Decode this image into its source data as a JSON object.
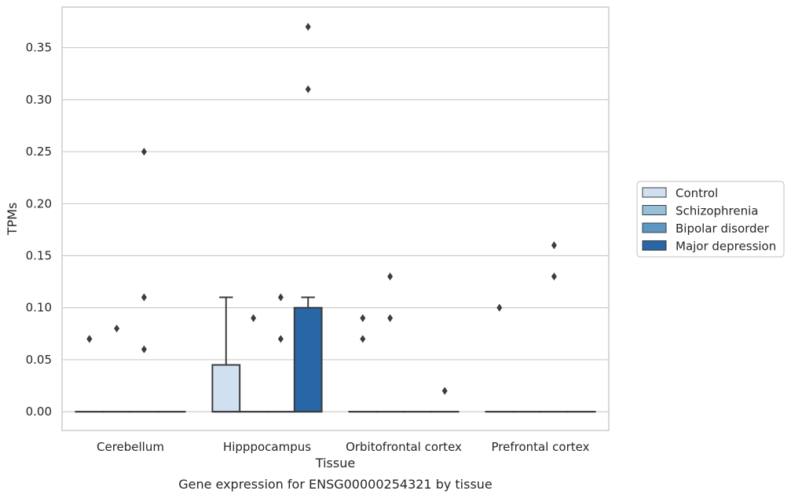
{
  "chart_data": {
    "type": "box",
    "title": "",
    "caption": "Gene expression for ENSG00000254321 by tissue",
    "xlabel": "Tissue",
    "ylabel": "TPMs",
    "ylim": [
      -0.018,
      0.389
    ],
    "yticks": [
      0.0,
      0.05,
      0.1,
      0.15,
      0.2,
      0.25,
      0.3,
      0.35
    ],
    "ytick_labels": [
      "0.00",
      "0.05",
      "0.10",
      "0.15",
      "0.20",
      "0.25",
      "0.30",
      "0.35"
    ],
    "grid": "horizontal",
    "legend_placement": "right",
    "categories": [
      "Cerebellum",
      "Hipppocampus",
      "Orbitofrontal cortex",
      "Prefrontal cortex"
    ],
    "series": [
      {
        "name": "Control",
        "color": "#d1e0f0",
        "boxes": [
          {
            "q1": 0.0,
            "median": 0.0,
            "q3": 0.0,
            "whislo": 0.0,
            "whishi": 0.0,
            "fliers": [
              0.07,
              0.07
            ]
          },
          {
            "q1": 0.0,
            "median": 0.0,
            "q3": 0.045,
            "whislo": 0.0,
            "whishi": 0.11,
            "fliers": []
          },
          {
            "q1": 0.0,
            "median": 0.0,
            "q3": 0.0,
            "whislo": 0.0,
            "whishi": 0.0,
            "fliers": [
              0.07,
              0.09
            ]
          },
          {
            "q1": 0.0,
            "median": 0.0,
            "q3": 0.0,
            "whislo": 0.0,
            "whishi": 0.0,
            "fliers": [
              0.1
            ]
          }
        ]
      },
      {
        "name": "Schizophrenia",
        "color": "#97bfd8",
        "boxes": [
          {
            "q1": 0.0,
            "median": 0.0,
            "q3": 0.0,
            "whislo": 0.0,
            "whishi": 0.0,
            "fliers": [
              0.08
            ]
          },
          {
            "q1": 0.0,
            "median": 0.0,
            "q3": 0.0,
            "whislo": 0.0,
            "whishi": 0.0,
            "fliers": [
              0.09
            ]
          },
          {
            "q1": 0.0,
            "median": 0.0,
            "q3": 0.0,
            "whislo": 0.0,
            "whishi": 0.0,
            "fliers": [
              0.09,
              0.13
            ]
          },
          {
            "q1": 0.0,
            "median": 0.0,
            "q3": 0.0,
            "whislo": 0.0,
            "whishi": 0.0,
            "fliers": []
          }
        ]
      },
      {
        "name": "Bipolar disorder",
        "color": "#5b98c4",
        "boxes": [
          {
            "q1": 0.0,
            "median": 0.0,
            "q3": 0.0,
            "whislo": 0.0,
            "whishi": 0.0,
            "fliers": [
              0.06,
              0.11,
              0.25
            ]
          },
          {
            "q1": 0.0,
            "median": 0.0,
            "q3": 0.0,
            "whislo": 0.0,
            "whishi": 0.0,
            "fliers": [
              0.07,
              0.11
            ]
          },
          {
            "q1": 0.0,
            "median": 0.0,
            "q3": 0.0,
            "whislo": 0.0,
            "whishi": 0.0,
            "fliers": []
          },
          {
            "q1": 0.0,
            "median": 0.0,
            "q3": 0.0,
            "whislo": 0.0,
            "whishi": 0.0,
            "fliers": [
              0.13,
              0.16
            ]
          }
        ]
      },
      {
        "name": "Major depression",
        "color": "#2866a6",
        "boxes": [
          {
            "q1": 0.0,
            "median": 0.0,
            "q3": 0.0,
            "whislo": 0.0,
            "whishi": 0.0,
            "fliers": []
          },
          {
            "q1": 0.0,
            "median": 0.0,
            "q3": 0.1,
            "whislo": 0.0,
            "whishi": 0.11,
            "fliers": [
              0.31,
              0.37
            ]
          },
          {
            "q1": 0.0,
            "median": 0.0,
            "q3": 0.0,
            "whislo": 0.0,
            "whishi": 0.0,
            "fliers": [
              0.02
            ]
          },
          {
            "q1": 0.0,
            "median": 0.0,
            "q3": 0.0,
            "whislo": 0.0,
            "whishi": 0.0,
            "fliers": []
          }
        ]
      }
    ]
  }
}
